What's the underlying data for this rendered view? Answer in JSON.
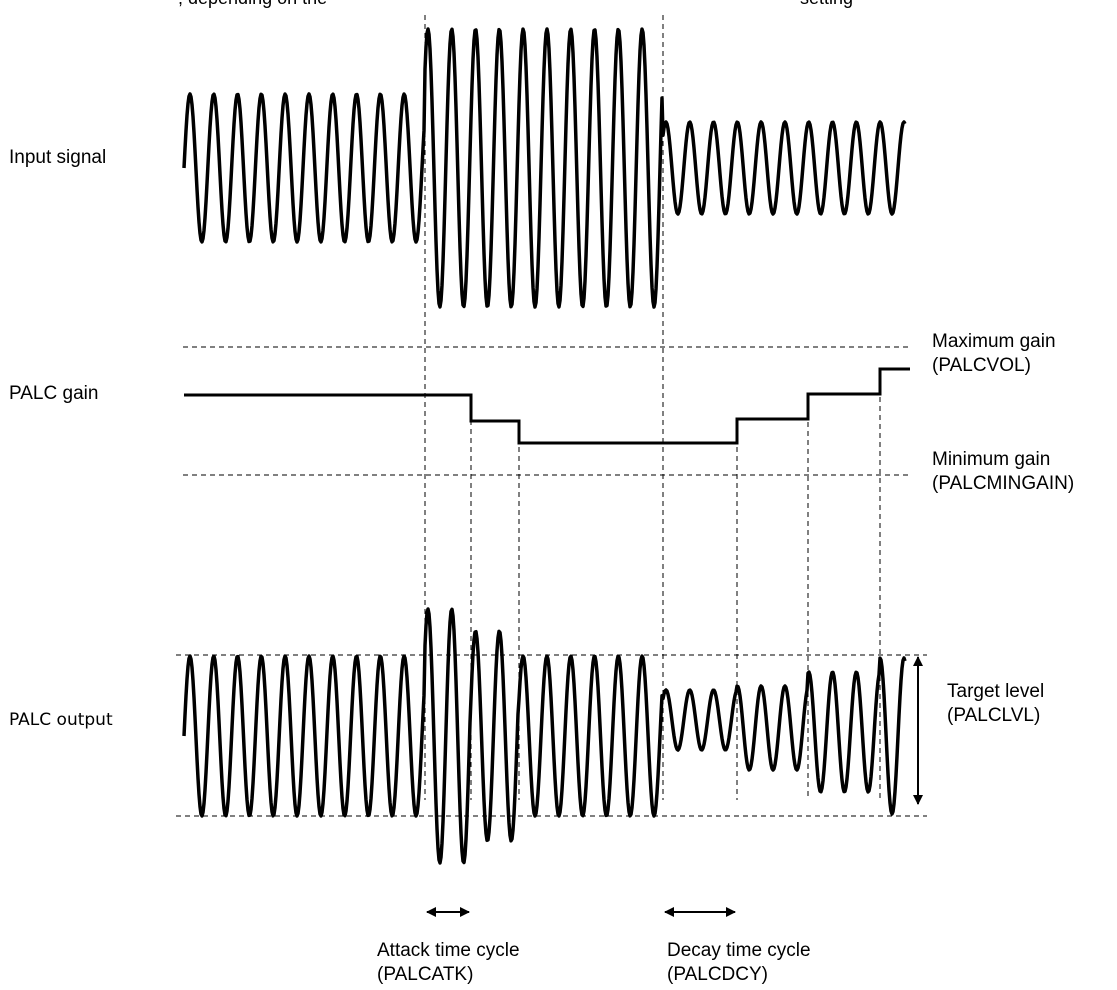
{
  "top_text": ", depending on the",
  "top_text_2": "setting",
  "labels": {
    "input_signal": "Input signal",
    "palc_gain": "PALC gain",
    "palc_output": "PALC output"
  },
  "annotations": {
    "max_gain_1": "Maximum gain",
    "max_gain_2": "(PALCVOL)",
    "min_gain_1": "Minimum gain",
    "min_gain_2": "(PALCMINGAIN)",
    "target_1": "Target level",
    "target_2": "(PALCLVL)",
    "attack_1": "Attack time cycle",
    "attack_2": "(PALCATK)",
    "decay_1": "Decay time cycle",
    "decay_2": "(PALCDCY)"
  },
  "colors": {
    "line": "#000000",
    "background": "#ffffff"
  }
}
